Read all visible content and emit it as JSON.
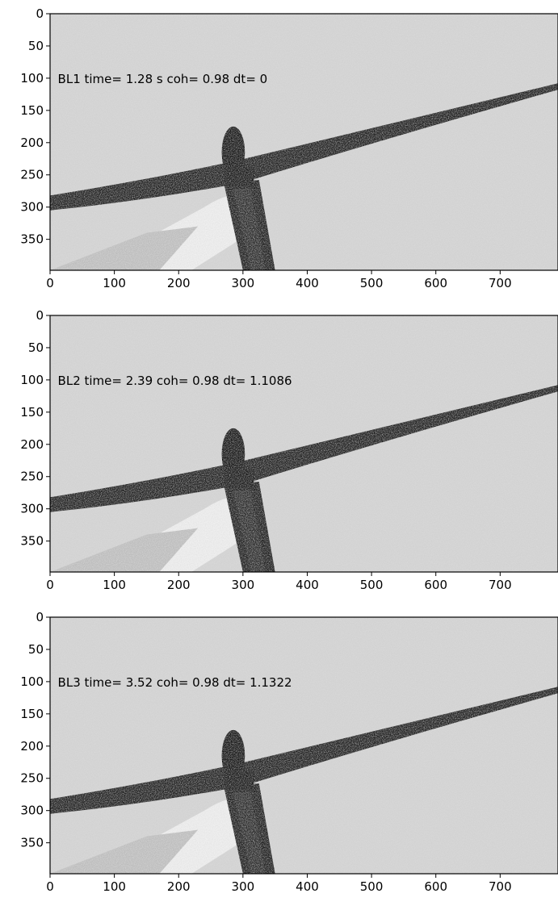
{
  "panels": [
    {
      "annotation": "BL1 time= 1.28 s coh= 0.98 dt= 0",
      "x_ticks": [
        "0",
        "100",
        "200",
        "300",
        "400",
        "500",
        "600",
        "700"
      ],
      "y_ticks": [
        "0",
        "50",
        "100",
        "150",
        "200",
        "250",
        "300",
        "350"
      ]
    },
    {
      "annotation": "BL2 time= 2.39 coh= 0.98 dt= 1.1086",
      "x_ticks": [
        "0",
        "100",
        "200",
        "300",
        "400",
        "500",
        "600",
        "700"
      ],
      "y_ticks": [
        "0",
        "50",
        "100",
        "150",
        "200",
        "250",
        "300",
        "350"
      ]
    },
    {
      "annotation": "BL3 time= 3.52 coh= 0.98 dt= 1.1322",
      "x_ticks": [
        "0",
        "100",
        "200",
        "300",
        "400",
        "500",
        "600",
        "700"
      ],
      "y_ticks": [
        "0",
        "50",
        "100",
        "150",
        "200",
        "250",
        "300",
        "350"
      ]
    }
  ],
  "image": {
    "description_icon": "propeller-photo-icon",
    "background_color": "#cfcfcf",
    "blade_color": "#1b1b1b",
    "hand_color": "#f2f2f2"
  }
}
